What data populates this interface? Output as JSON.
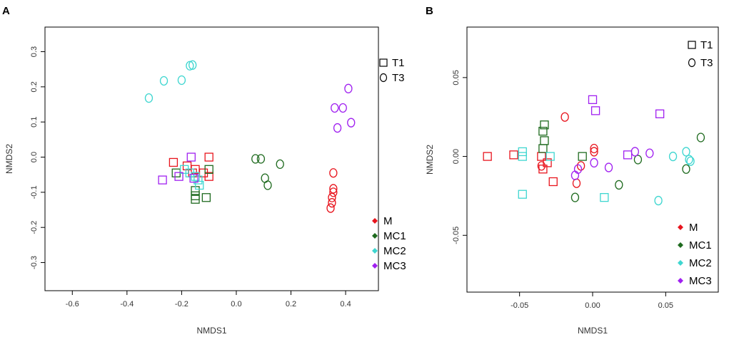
{
  "chart_data": [
    {
      "panel_label": "A",
      "type": "scatter",
      "xlabel": "NMDS1",
      "ylabel": "NMDS2",
      "xlim": [
        -0.7,
        0.52
      ],
      "ylim": [
        -0.38,
        0.37
      ],
      "xticks": [
        -0.6,
        -0.4,
        -0.2,
        0.0,
        0.2,
        0.4
      ],
      "xtick_labels": [
        "-0.6",
        "-0.4",
        "-0.2",
        "0.0",
        "0.2",
        "0.4"
      ],
      "yticks": [
        -0.3,
        -0.2,
        -0.1,
        0.0,
        0.1,
        0.2,
        0.3
      ],
      "ytick_labels": [
        "-0.3",
        "-0.2",
        "-0.1",
        "0.0",
        "0.1",
        "0.2",
        "0.3"
      ],
      "shape_legend": [
        {
          "label": "T1",
          "shape": "square"
        },
        {
          "label": "T3",
          "shape": "circle"
        }
      ],
      "group_legend": [
        {
          "label": "M",
          "color": "#e8141d"
        },
        {
          "label": "MC1",
          "color": "#1e6a1e"
        },
        {
          "label": "MC2",
          "color": "#3ed6d0"
        },
        {
          "label": "MC3",
          "color": "#a020f0"
        }
      ],
      "series": [
        {
          "name": "M T1",
          "group": "M",
          "shape": "square",
          "points": [
            [
              -0.23,
              -0.015
            ],
            [
              -0.18,
              -0.025
            ],
            [
              -0.16,
              -0.045
            ],
            [
              -0.15,
              -0.035
            ],
            [
              -0.12,
              -0.045
            ],
            [
              -0.1,
              -0.055
            ],
            [
              -0.1,
              0.0
            ]
          ]
        },
        {
          "name": "M T3",
          "group": "M",
          "shape": "circle",
          "points": [
            [
              0.355,
              -0.045
            ],
            [
              0.355,
              -0.09
            ],
            [
              0.355,
              -0.1
            ],
            [
              0.35,
              -0.115
            ],
            [
              0.35,
              -0.13
            ],
            [
              0.345,
              -0.145
            ]
          ]
        },
        {
          "name": "MC1 T1",
          "group": "MC1",
          "shape": "square",
          "points": [
            [
              -0.22,
              -0.045
            ],
            [
              -0.15,
              -0.095
            ],
            [
              -0.15,
              -0.11
            ],
            [
              -0.15,
              -0.12
            ],
            [
              -0.11,
              -0.115
            ],
            [
              -0.1,
              -0.035
            ]
          ]
        },
        {
          "name": "MC1 T3",
          "group": "MC1",
          "shape": "circle",
          "points": [
            [
              0.07,
              -0.005
            ],
            [
              0.09,
              -0.005
            ],
            [
              0.105,
              -0.06
            ],
            [
              0.115,
              -0.08
            ],
            [
              0.16,
              -0.02
            ]
          ]
        },
        {
          "name": "MC2 T1",
          "group": "MC2",
          "shape": "square",
          "points": [
            [
              -0.19,
              -0.035
            ],
            [
              -0.17,
              -0.045
            ],
            [
              -0.15,
              -0.055
            ],
            [
              -0.14,
              -0.065
            ],
            [
              -0.135,
              -0.08
            ]
          ]
        },
        {
          "name": "MC2 T3",
          "group": "MC2",
          "shape": "circle",
          "points": [
            [
              -0.32,
              0.168
            ],
            [
              -0.265,
              0.217
            ],
            [
              -0.2,
              0.219
            ],
            [
              -0.17,
              0.26
            ],
            [
              -0.16,
              0.262
            ]
          ]
        },
        {
          "name": "MC3 T1",
          "group": "MC3",
          "shape": "square",
          "points": [
            [
              -0.27,
              -0.065
            ],
            [
              -0.21,
              -0.055
            ],
            [
              -0.165,
              0.0
            ],
            [
              -0.155,
              -0.06
            ]
          ]
        },
        {
          "name": "MC3 T3",
          "group": "MC3",
          "shape": "circle",
          "points": [
            [
              0.36,
              0.14
            ],
            [
              0.39,
              0.14
            ],
            [
              0.41,
              0.195
            ],
            [
              0.37,
              0.083
            ],
            [
              0.42,
              0.098
            ]
          ]
        }
      ]
    },
    {
      "panel_label": "B",
      "type": "scatter",
      "xlabel": "NMDS1",
      "ylabel": "NMDS2",
      "xlim": [
        -0.086,
        0.086
      ],
      "ylim": [
        -0.086,
        0.082
      ],
      "xticks": [
        -0.05,
        0.0,
        0.05
      ],
      "xtick_labels": [
        "-0.05",
        "0.00",
        "0.05"
      ],
      "yticks": [
        -0.05,
        0.0,
        0.05
      ],
      "ytick_labels": [
        "-0.05",
        "0.00",
        "0.05"
      ],
      "shape_legend": [
        {
          "label": "T1",
          "shape": "square"
        },
        {
          "label": "T3",
          "shape": "circle"
        }
      ],
      "group_legend": [
        {
          "label": "M",
          "color": "#e8141d"
        },
        {
          "label": "MC1",
          "color": "#1e6a1e"
        },
        {
          "label": "MC2",
          "color": "#3ed6d0"
        },
        {
          "label": "MC3",
          "color": "#a020f0"
        }
      ],
      "series": [
        {
          "name": "M T1",
          "group": "M",
          "shape": "square",
          "points": [
            [
              -0.072,
              0.0
            ],
            [
              -0.054,
              0.001
            ],
            [
              -0.035,
              0.0
            ],
            [
              -0.034,
              -0.008
            ],
            [
              -0.031,
              -0.004
            ],
            [
              -0.027,
              -0.016
            ]
          ]
        },
        {
          "name": "M T3",
          "group": "M",
          "shape": "circle",
          "points": [
            [
              -0.035,
              -0.006
            ],
            [
              -0.019,
              0.025
            ],
            [
              -0.011,
              -0.017
            ],
            [
              -0.008,
              -0.006
            ],
            [
              0.001,
              0.005
            ],
            [
              0.001,
              0.003
            ]
          ]
        },
        {
          "name": "MC1 T1",
          "group": "MC1",
          "shape": "square",
          "points": [
            [
              -0.034,
              0.016
            ],
            [
              -0.033,
              0.02
            ],
            [
              -0.033,
              0.01
            ],
            [
              -0.034,
              0.005
            ],
            [
              -0.007,
              0.0
            ]
          ]
        },
        {
          "name": "MC1 T3",
          "group": "MC1",
          "shape": "circle",
          "points": [
            [
              -0.012,
              -0.026
            ],
            [
              0.018,
              -0.018
            ],
            [
              0.031,
              -0.002
            ],
            [
              0.064,
              -0.008
            ],
            [
              0.074,
              0.012
            ]
          ]
        },
        {
          "name": "MC2 T1",
          "group": "MC2",
          "shape": "square",
          "points": [
            [
              -0.048,
              0.003
            ],
            [
              -0.048,
              0.0
            ],
            [
              -0.048,
              -0.024
            ],
            [
              -0.029,
              0.0
            ],
            [
              0.008,
              -0.026
            ]
          ]
        },
        {
          "name": "MC2 T3",
          "group": "MC2",
          "shape": "circle",
          "points": [
            [
              0.045,
              -0.028
            ],
            [
              0.055,
              0.0
            ],
            [
              0.064,
              0.003
            ],
            [
              0.066,
              -0.002
            ],
            [
              0.067,
              -0.003
            ]
          ]
        },
        {
          "name": "MC3 T1",
          "group": "MC3",
          "shape": "square",
          "points": [
            [
              0.0,
              0.036
            ],
            [
              0.002,
              0.029
            ],
            [
              0.024,
              0.001
            ],
            [
              0.046,
              0.027
            ]
          ]
        },
        {
          "name": "MC3 T3",
          "group": "MC3",
          "shape": "circle",
          "points": [
            [
              -0.012,
              -0.012
            ],
            [
              -0.01,
              -0.008
            ],
            [
              0.001,
              -0.004
            ],
            [
              0.011,
              -0.007
            ],
            [
              0.029,
              0.003
            ],
            [
              0.039,
              0.002
            ]
          ]
        }
      ]
    }
  ]
}
